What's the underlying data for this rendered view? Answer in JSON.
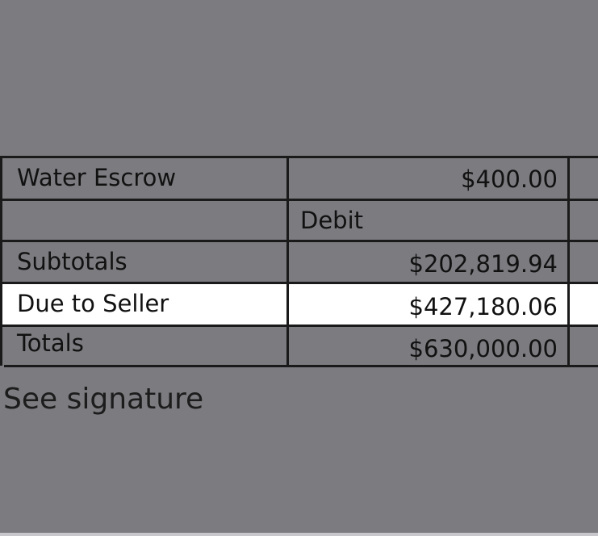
{
  "table": {
    "rows": [
      {
        "label": "Water Escrow",
        "amount": "$400.00"
      },
      {
        "label": "",
        "amount": "Debit"
      },
      {
        "label": "Subtotals",
        "amount": "$202,819.94"
      },
      {
        "label": "Due to Seller",
        "amount": "$427,180.06",
        "highlighted": true
      },
      {
        "label": "Totals",
        "amount": "$630,000.00"
      }
    ]
  },
  "note": "See signature",
  "colors": {
    "background": "#7b7b80",
    "highlight": "#ffffff"
  }
}
